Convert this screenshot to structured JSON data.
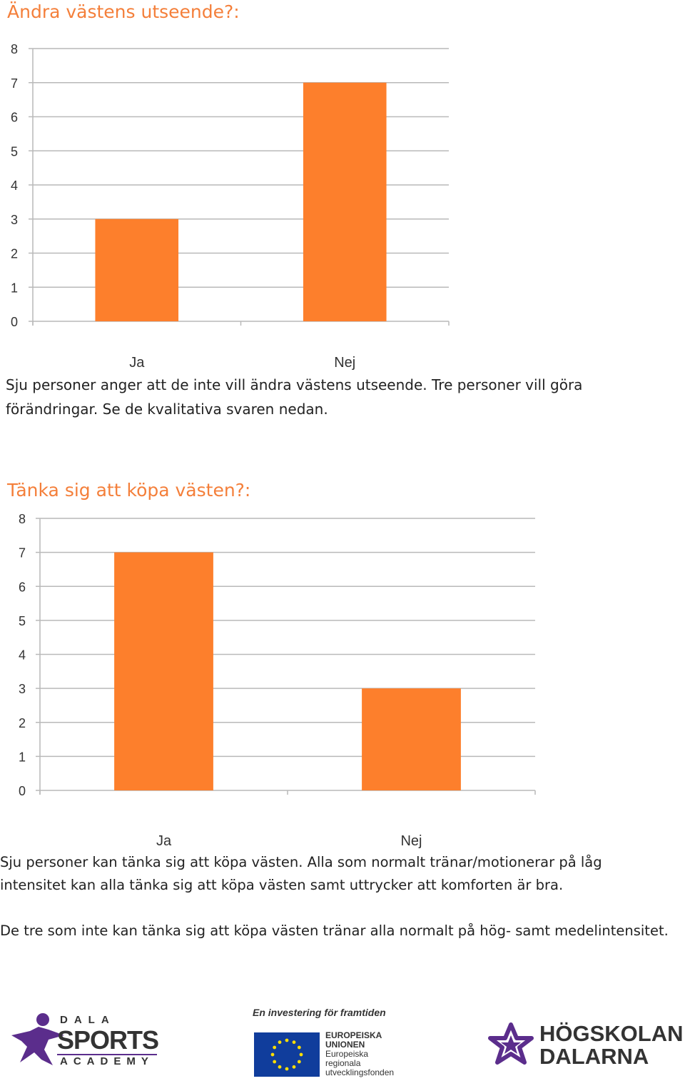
{
  "section1": {
    "heading": "Ändra västens utseende?:",
    "paragraph_line1": "Sju personer anger att de inte vill ändra västens utseende. Tre personer vill göra",
    "paragraph_line2": "förändringar. Se de kvalitativa svaren nedan."
  },
  "section2": {
    "heading": "Tänka sig att köpa västen?:",
    "paragraph_line1": "Sju personer kan tänka sig att köpa västen.  Alla som normalt tränar/motionerar på låg",
    "paragraph_line2": "intensitet kan alla tänka sig att köpa västen samt uttrycker att komforten är bra.",
    "paragraph2": "De tre som inte kan tänka sig att köpa västen tränar alla normalt på hög- samt medelintensitet."
  },
  "chart_data": [
    {
      "type": "bar",
      "title": "Ändra västens utseende?:",
      "categories": [
        "Ja",
        "Nej"
      ],
      "values": [
        3,
        7
      ],
      "ylim": [
        0,
        8
      ],
      "yticks": [
        0,
        1,
        2,
        3,
        4,
        5,
        6,
        7,
        8
      ],
      "grid": true,
      "legend": "none",
      "color": "#fd7f2c"
    },
    {
      "type": "bar",
      "title": "Tänka sig att köpa västen?:",
      "categories": [
        "Ja",
        "Nej"
      ],
      "values": [
        7,
        3
      ],
      "ylim": [
        0,
        8
      ],
      "yticks": [
        0,
        1,
        2,
        3,
        4,
        5,
        6,
        7,
        8
      ],
      "grid": true,
      "legend": "none",
      "color": "#fd7f2c"
    }
  ],
  "logos": {
    "dala": {
      "top": "DALA",
      "main": "SPORTS",
      "bottom": "ACADEMY"
    },
    "eu": {
      "tagline": "En investering för framtiden",
      "line1": "EUROPEISKA",
      "line2": "UNIONEN",
      "line3": "Europeiska",
      "line4": "regionala",
      "line5": "utvecklingsfonden"
    },
    "hogskolan": {
      "line1": "HÖGSKOLAN",
      "line2": "DALARNA"
    }
  },
  "colors": {
    "accent": "#f47f3a",
    "bar": "#fd7f2c",
    "eu_blue": "#103d9c",
    "eu_star": "#ffde00",
    "purple": "#5b2d8c"
  }
}
